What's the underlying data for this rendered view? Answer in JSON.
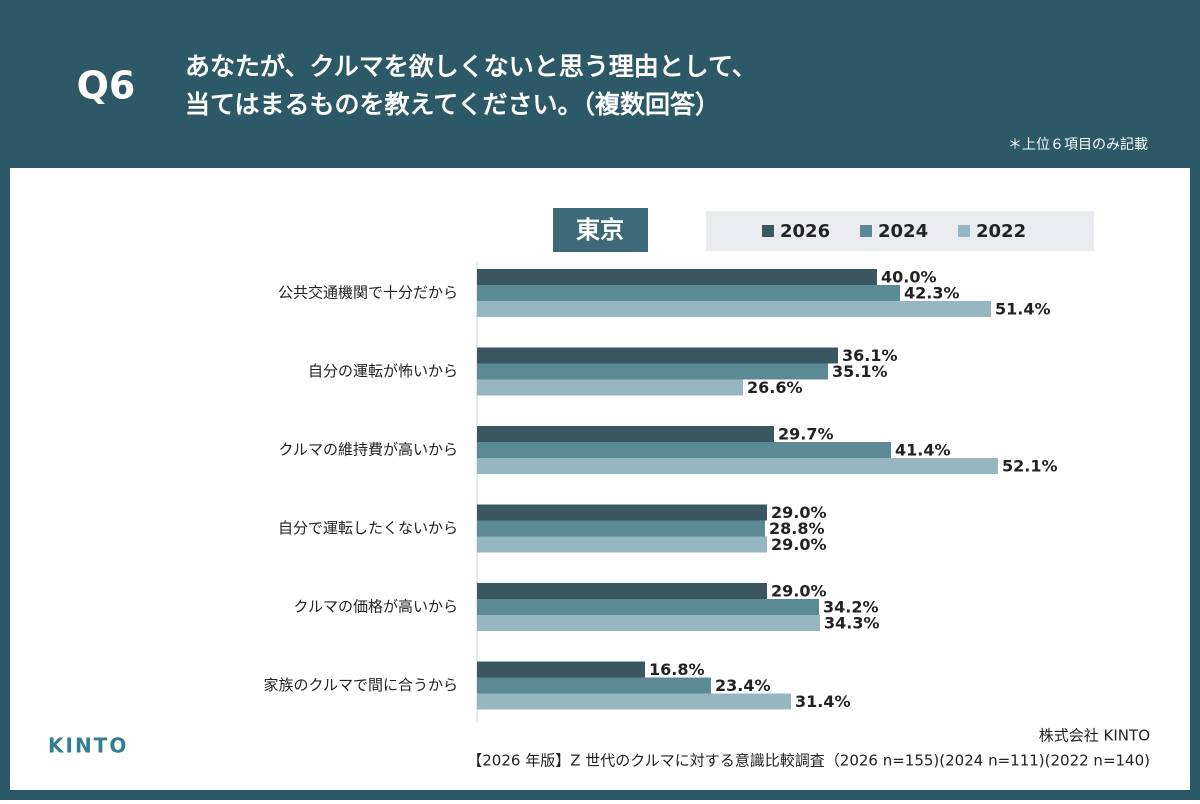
{
  "chart_data": {
    "type": "bar",
    "orientation": "horizontal",
    "question": "Q6",
    "title": [
      "あなたが、クルマを欲しくないと思う理由として、",
      "当てはまるものを教えてください。（複数回答）"
    ],
    "note": "＊上位６項目のみ記載",
    "subtitle": "東京",
    "categories": [
      "公共交通機関で十分だから",
      "自分の運転が怖いから",
      "クルマの維持費が高いから",
      "自分で運転したくないから",
      "クルマの価格が高いから",
      "家族のクルマで間に合うから"
    ],
    "series": [
      {
        "name": "2026",
        "color": "#3a5761",
        "values": [
          40.0,
          36.1,
          29.7,
          29.0,
          29.0,
          16.8
        ],
        "value_labels": [
          "40.0%",
          "36.1%",
          "29.7%",
          "29.0%",
          "29.0%",
          "16.8%"
        ]
      },
      {
        "name": "2024",
        "color": "#5b8a94",
        "values": [
          42.3,
          35.1,
          41.4,
          28.8,
          34.2,
          23.4
        ],
        "value_labels": [
          "42.3%",
          "35.1%",
          "41.4%",
          "28.8%",
          "34.2%",
          "23.4%"
        ]
      },
      {
        "name": "2022",
        "color": "#96b6c1",
        "values": [
          51.4,
          26.6,
          52.1,
          29.0,
          34.3,
          31.4
        ],
        "value_labels": [
          "51.4%",
          "26.6%",
          "52.1%",
          "29.0%",
          "34.3%",
          "31.4%"
        ]
      }
    ],
    "xlim": [
      0,
      60
    ],
    "logo": "KINTO",
    "company": "株式会社 KINTO",
    "source": "【2026 年版】Z 世代のクルマに対する意識比較調査（2026 n=155)(2024 n=111)(2022 n=140)"
  }
}
